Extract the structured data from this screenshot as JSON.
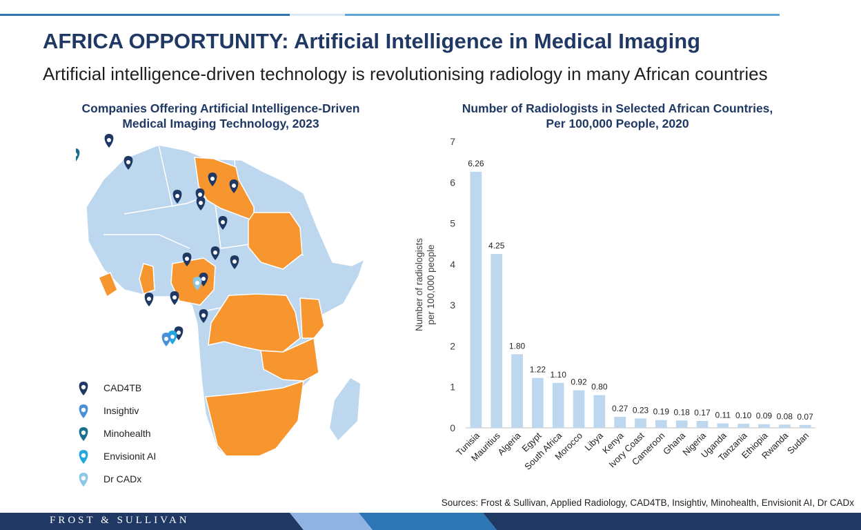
{
  "header": {
    "title": "AFRICA OPPORTUNITY: Artificial Intelligence in Medical Imaging",
    "subtitle": "Artificial intelligence-driven technology is revolutionising radiology in many African countries"
  },
  "map_panel": {
    "title_line1": "Companies Offering Artificial Intelligence-Driven",
    "title_line2": "Medical Imaging Technology, 2023",
    "legend": [
      {
        "label": "CAD4TB",
        "color": "#1f3864"
      },
      {
        "label": "Insightiv",
        "color": "#4a90d9"
      },
      {
        "label": "Minohealth",
        "color": "#1a6e8e"
      },
      {
        "label": "Envisionit AI",
        "color": "#22a8e0"
      },
      {
        "label": "Dr CADx",
        "color": "#8cc7e8"
      }
    ],
    "colors": {
      "highlight": "#f7962e",
      "base": "#bdd7ee",
      "border": "#ffffff"
    }
  },
  "chart_data": {
    "type": "bar",
    "title": "Number of Radiologists in Selected African Countries, Per 100,000 People, 2020",
    "title_line1": "Number of Radiologists in Selected African Countries,",
    "title_line2": "Per 100,000 People, 2020",
    "ylabel_line1": "Number of radiologists",
    "ylabel_line2": "per 100,000 people",
    "ylim": [
      0,
      7
    ],
    "yticks": [
      0,
      1,
      2,
      3,
      4,
      5,
      6,
      7
    ],
    "categories": [
      "Tunisia",
      "Mauritius",
      "Algeria",
      "Egypt",
      "South Africa",
      "Morocco",
      "Libya",
      "Kenya",
      "Ivory Coast",
      "Cameroon",
      "Ghana",
      "Nigeria",
      "Uganda",
      "Tanzania",
      "Ethiopia",
      "Rwanda",
      "Sudan"
    ],
    "values": [
      6.26,
      4.25,
      1.8,
      1.22,
      1.1,
      0.92,
      0.8,
      0.27,
      0.23,
      0.19,
      0.18,
      0.17,
      0.11,
      0.1,
      0.09,
      0.08,
      0.07
    ],
    "value_labels": [
      "6.26",
      "4.25",
      "1.80",
      "1.22",
      "1.10",
      "0.92",
      "0.80",
      "0.27",
      "0.23",
      "0.19",
      "0.18",
      "0.17",
      "0.11",
      "0.10",
      "0.09",
      "0.08",
      "0.07"
    ],
    "bar_color": "#bdd7ee",
    "grid": false
  },
  "sources": "Sources: Frost & Sullivan, Applied Radiology, CAD4TB, Insightiv, Minohealth, Envisionit AI, Dr CADx",
  "footer": {
    "logo": "FROST & SULLIVAN",
    "colors": [
      "#1f3864",
      "#2e75b6",
      "#8fb4e3"
    ]
  }
}
